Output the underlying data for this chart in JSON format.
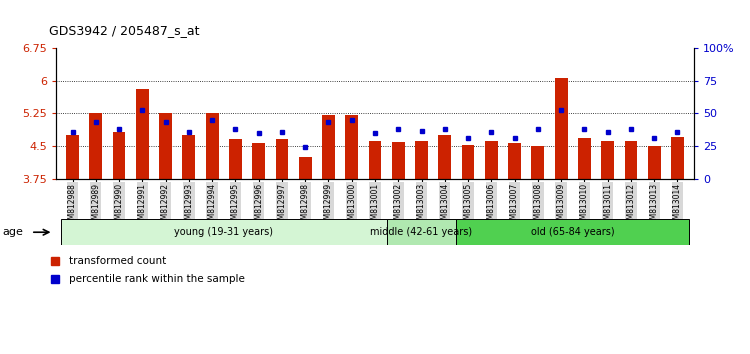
{
  "title": "GDS3942 / 205487_s_at",
  "samples": [
    "GSM812988",
    "GSM812989",
    "GSM812990",
    "GSM812991",
    "GSM812992",
    "GSM812993",
    "GSM812994",
    "GSM812995",
    "GSM812996",
    "GSM812997",
    "GSM812998",
    "GSM812999",
    "GSM813000",
    "GSM813001",
    "GSM813002",
    "GSM813003",
    "GSM813004",
    "GSM813005",
    "GSM813006",
    "GSM813007",
    "GSM813008",
    "GSM813009",
    "GSM813010",
    "GSM813011",
    "GSM813012",
    "GSM813013",
    "GSM813014"
  ],
  "red_values": [
    4.75,
    5.25,
    4.82,
    5.8,
    5.25,
    4.75,
    5.25,
    4.65,
    4.58,
    4.65,
    4.25,
    5.2,
    5.2,
    4.62,
    4.6,
    4.62,
    4.75,
    4.52,
    4.62,
    4.58,
    4.5,
    6.05,
    4.68,
    4.62,
    4.62,
    4.5,
    4.7
  ],
  "blue_values": [
    4.83,
    5.05,
    4.9,
    5.33,
    5.05,
    4.83,
    5.09,
    4.9,
    4.79,
    4.82,
    4.48,
    5.05,
    5.09,
    4.79,
    4.9,
    4.85,
    4.9,
    4.68,
    4.82,
    4.68,
    4.9,
    5.33,
    4.9,
    4.83,
    4.9,
    4.68,
    4.83
  ],
  "groups": [
    {
      "label": "young (19-31 years)",
      "start": 0,
      "end": 13,
      "color": "#d4f5d4"
    },
    {
      "label": "middle (42-61 years)",
      "start": 14,
      "end": 16,
      "color": "#b0e8b0"
    },
    {
      "label": "old (65-84 years)",
      "start": 17,
      "end": 26,
      "color": "#50d050"
    }
  ],
  "ylim_left": [
    3.75,
    6.75
  ],
  "ylim_right": [
    0,
    100
  ],
  "yticks_left": [
    3.75,
    4.5,
    5.25,
    6.0,
    6.75
  ],
  "yticks_right": [
    0,
    25,
    50,
    75,
    100
  ],
  "ytick_labels_left": [
    "3.75",
    "4.5",
    "5.25",
    "6",
    "6.75"
  ],
  "ytick_labels_right": [
    "0",
    "25",
    "50",
    "75",
    "100%"
  ],
  "grid_values": [
    4.5,
    5.25,
    6.0
  ],
  "bar_color": "#cc2200",
  "dot_color": "#0000cc",
  "bar_width": 0.55,
  "age_label": "age",
  "legend_items": [
    {
      "color": "#cc2200",
      "label": "transformed count"
    },
    {
      "color": "#0000cc",
      "label": "percentile rank within the sample"
    }
  ],
  "background_color": "#ffffff"
}
